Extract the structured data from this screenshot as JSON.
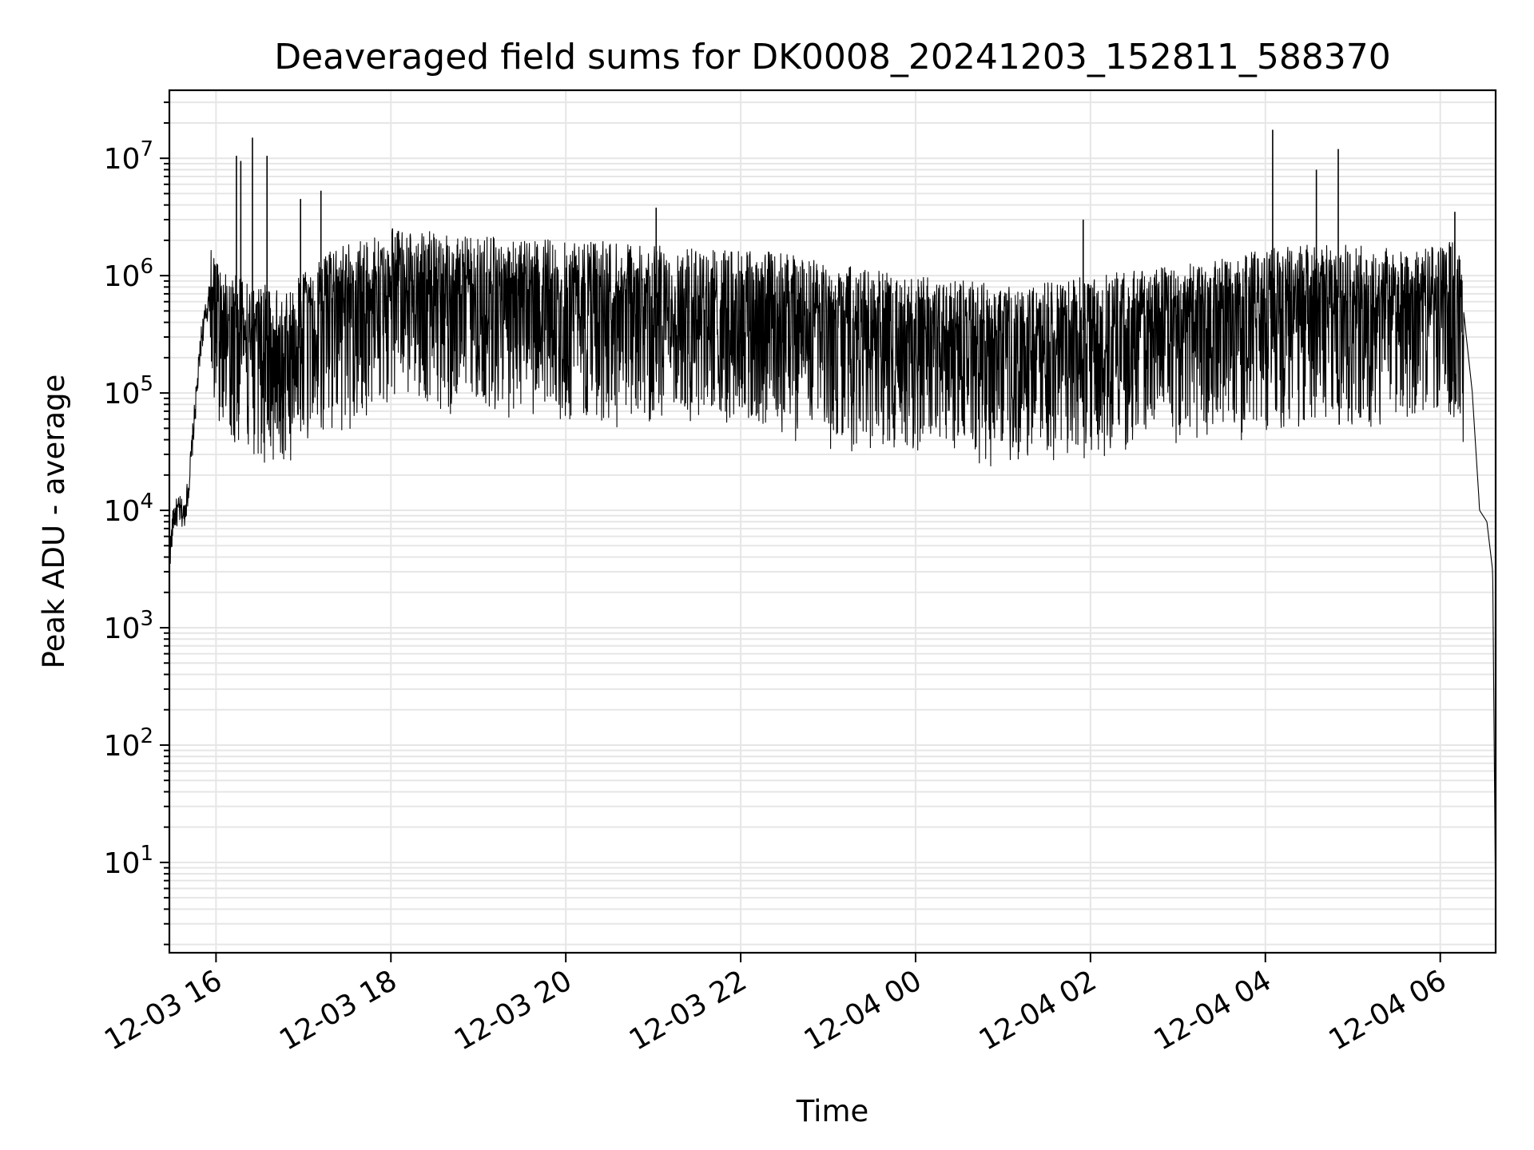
{
  "chart_data": {
    "type": "line",
    "title": "Deaveraged field sums for DK0008_20241203_152811_588370",
    "xlabel": "Time",
    "ylabel": "Peak ADU - average",
    "yscale": "log",
    "ylim": [
      1.7,
      38000000
    ],
    "xlim": [
      "2024-12-03 15:28",
      "2024-12-04 06:38"
    ],
    "x_ticks": [
      "12-03 16",
      "12-03 18",
      "12-03 20",
      "12-03 22",
      "12-04 00",
      "12-04 02",
      "12-04 04",
      "12-04 06"
    ],
    "y_ticks": [
      {
        "base": "10",
        "exp": "1"
      },
      {
        "base": "10",
        "exp": "2"
      },
      {
        "base": "10",
        "exp": "3"
      },
      {
        "base": "10",
        "exp": "4"
      },
      {
        "base": "10",
        "exp": "5"
      },
      {
        "base": "10",
        "exp": "6"
      },
      {
        "base": "10",
        "exp": "7"
      }
    ],
    "grid": true,
    "line_color": "#000000",
    "grid_color": "#e6e6e6",
    "series": [
      {
        "x": [
          "2024-12-03 15:28",
          "2024-12-03 15:31",
          "2024-12-03 15:35",
          "2024-12-03 15:38",
          "2024-12-03 15:41",
          "2024-12-03 15:46",
          "2024-12-03 15:50",
          "2024-12-03 15:56",
          "2024-12-03 16:05",
          "2024-12-03 16:15",
          "2024-12-03 16:30",
          "2024-12-03 16:45",
          "2024-12-03 17:00",
          "2024-12-03 17:20",
          "2024-12-03 17:40",
          "2024-12-03 18:00",
          "2024-12-03 18:30",
          "2024-12-03 19:00",
          "2024-12-03 19:30",
          "2024-12-03 20:00",
          "2024-12-03 20:30",
          "2024-12-03 21:00",
          "2024-12-03 21:30",
          "2024-12-03 22:00",
          "2024-12-03 22:30",
          "2024-12-03 23:00",
          "2024-12-03 23:30",
          "2024-12-04 00:00",
          "2024-12-04 00:30",
          "2024-12-04 01:00",
          "2024-12-04 01:30",
          "2024-12-04 02:00",
          "2024-12-04 02:30",
          "2024-12-04 03:00",
          "2024-12-04 03:30",
          "2024-12-04 04:00",
          "2024-12-04 04:30",
          "2024-12-04 05:00",
          "2024-12-04 05:30",
          "2024-12-04 06:00",
          "2024-12-04 06:10",
          "2024-12-04 06:16",
          "2024-12-04 06:22",
          "2024-12-04 06:27",
          "2024-12-04 06:32",
          "2024-12-04 06:36",
          "2024-12-04 06:38"
        ],
        "values": [
          3800,
          9000,
          10000,
          9000,
          15000,
          80000,
          300000,
          700000,
          450000,
          350000,
          300000,
          280000,
          380000,
          600000,
          700000,
          900000,
          850000,
          800000,
          750000,
          700000,
          700000,
          650000,
          600000,
          600000,
          550000,
          450000,
          400000,
          350000,
          330000,
          300000,
          320000,
          350000,
          400000,
          450000,
          500000,
          600000,
          650000,
          650000,
          600000,
          650000,
          750000,
          500000,
          100000,
          10000,
          8000,
          3000,
          3.6
        ]
      }
    ],
    "spikes": [
      {
        "x": "2024-12-03 16:14",
        "y": 10500000
      },
      {
        "x": "2024-12-03 16:17",
        "y": 9500000
      },
      {
        "x": "2024-12-03 16:25",
        "y": 15000000
      },
      {
        "x": "2024-12-03 16:35",
        "y": 10500000
      },
      {
        "x": "2024-12-03 16:58",
        "y": 4500000
      },
      {
        "x": "2024-12-03 17:12",
        "y": 5300000
      },
      {
        "x": "2024-12-03 18:05",
        "y": 2400000
      },
      {
        "x": "2024-12-03 21:02",
        "y": 3800000
      },
      {
        "x": "2024-12-04 01:55",
        "y": 3000000
      },
      {
        "x": "2024-12-04 04:05",
        "y": 17500000
      },
      {
        "x": "2024-12-04 04:35",
        "y": 8000000
      },
      {
        "x": "2024-12-04 04:50",
        "y": 12000000
      },
      {
        "x": "2024-12-04 06:10",
        "y": 3500000
      }
    ]
  }
}
